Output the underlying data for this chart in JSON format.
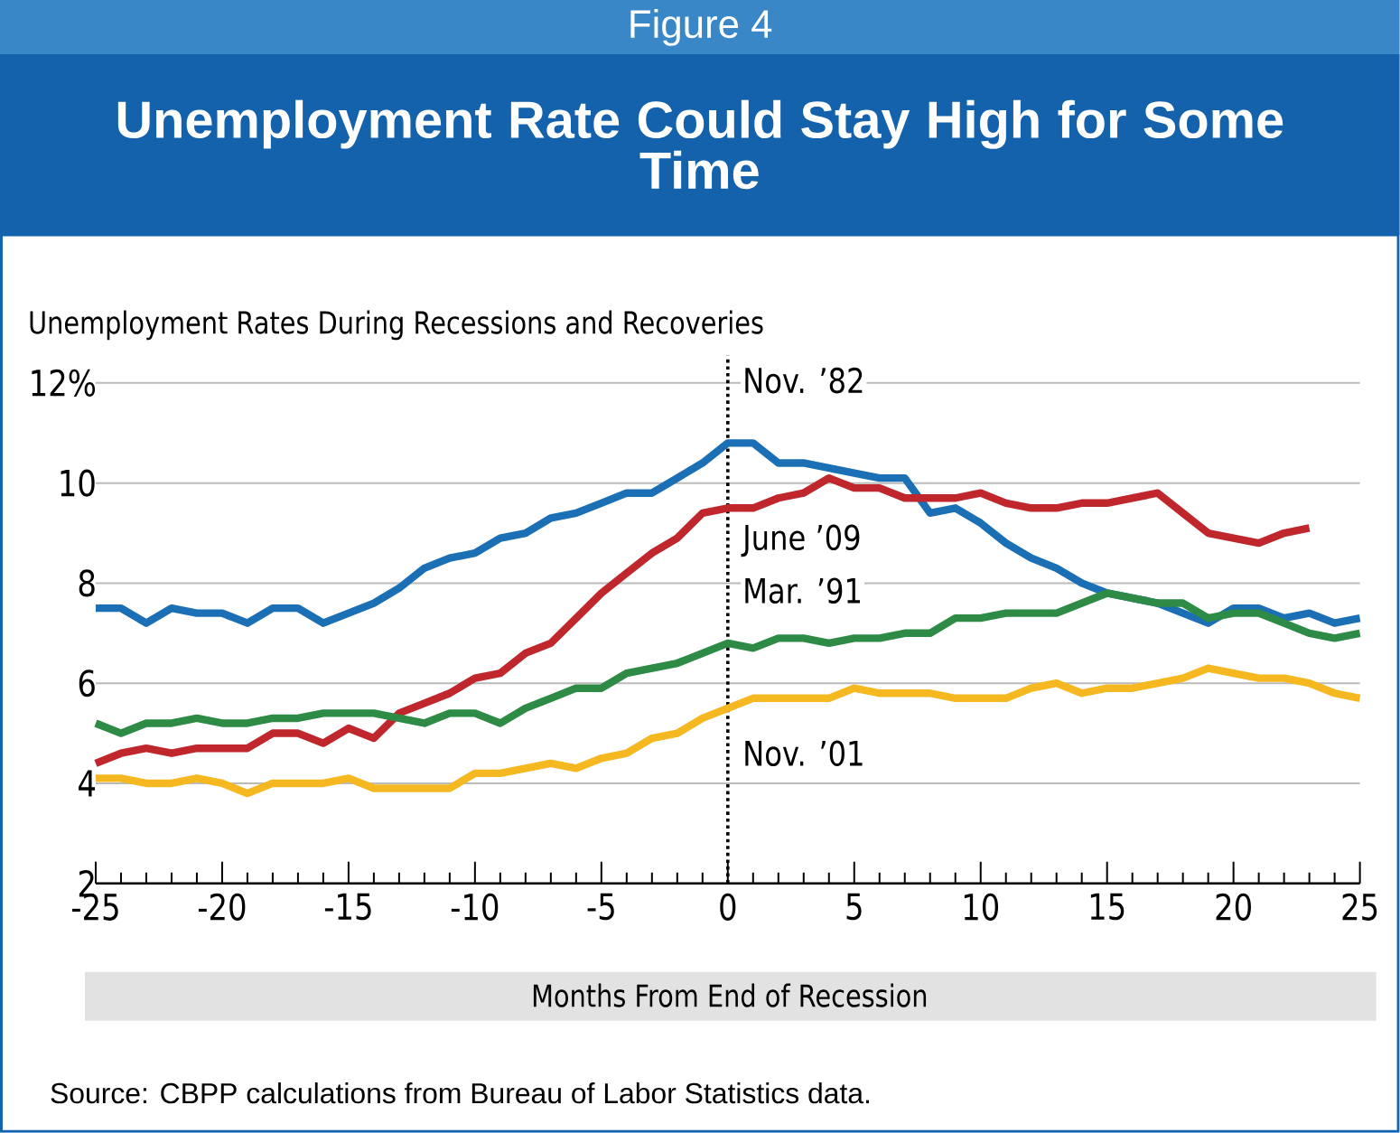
{
  "chart_data": {
    "type": "line",
    "title": "Unemployment Rate Could Stay High for Some Time",
    "subtitle": "Unemployment Rates During Recessions and Recoveries",
    "xlabel": "Months From End of Recession",
    "annotations": [
      "Figure 4",
      "Source: CBPP calculations from Bureau of Labor Statistics data."
    ],
    "x": [
      -25,
      -24,
      -23,
      -22,
      -21,
      -20,
      -19,
      -18,
      -17,
      -16,
      -15,
      -14,
      -13,
      -12,
      -11,
      -10,
      -9,
      -8,
      -7,
      -6,
      -5,
      -4,
      -3,
      -2,
      -1,
      0,
      1,
      2,
      3,
      4,
      5,
      6,
      7,
      8,
      9,
      10,
      11,
      12,
      13,
      14,
      15,
      16,
      17,
      18,
      19,
      20,
      21,
      22,
      23,
      24,
      25
    ],
    "series": [
      {
        "name": "Nov. ’82",
        "color": "#1a6fb5",
        "values": [
          7.5,
          7.5,
          7.2,
          7.5,
          7.4,
          7.4,
          7.2,
          7.5,
          7.5,
          7.2,
          7.4,
          7.6,
          7.9,
          8.3,
          8.5,
          8.6,
          8.9,
          9.0,
          9.3,
          9.4,
          9.6,
          9.8,
          9.8,
          10.1,
          10.4,
          10.8,
          10.8,
          10.4,
          10.4,
          10.3,
          10.2,
          10.1,
          10.1,
          9.4,
          9.5,
          9.2,
          8.8,
          8.5,
          8.3,
          8.0,
          7.8,
          7.7,
          7.6,
          7.4,
          7.2,
          7.5,
          7.5,
          7.3,
          7.4,
          7.2,
          7.3
        ]
      },
      {
        "name": "June ’09",
        "color": "#c0272d",
        "values": [
          4.4,
          4.6,
          4.7,
          4.6,
          4.7,
          4.7,
          4.7,
          5.0,
          5.0,
          4.8,
          5.1,
          4.9,
          5.4,
          5.6,
          5.8,
          6.1,
          6.2,
          6.6,
          6.8,
          7.3,
          7.8,
          8.2,
          8.6,
          8.9,
          9.4,
          9.5,
          9.5,
          9.7,
          9.8,
          10.1,
          9.9,
          9.9,
          9.7,
          9.7,
          9.7,
          9.8,
          9.6,
          9.5,
          9.5,
          9.6,
          9.6,
          9.7,
          9.8,
          9.4,
          9.0,
          8.9,
          8.8,
          9.0,
          9.1,
          null,
          null
        ]
      },
      {
        "name": "Mar. ’91",
        "color": "#2e8b45",
        "values": [
          5.2,
          5.0,
          5.2,
          5.2,
          5.3,
          5.2,
          5.2,
          5.3,
          5.3,
          5.4,
          5.4,
          5.4,
          5.3,
          5.2,
          5.4,
          5.4,
          5.2,
          5.5,
          5.7,
          5.9,
          5.9,
          6.2,
          6.3,
          6.4,
          6.6,
          6.8,
          6.7,
          6.9,
          6.9,
          6.8,
          6.9,
          6.9,
          7.0,
          7.0,
          7.3,
          7.3,
          7.4,
          7.4,
          7.4,
          7.6,
          7.8,
          7.7,
          7.6,
          7.6,
          7.3,
          7.4,
          7.4,
          7.2,
          7.0,
          6.9,
          7.0
        ]
      },
      {
        "name": "Nov. ’01",
        "color": "#f5b820",
        "values": [
          4.1,
          4.1,
          4.0,
          4.0,
          4.1,
          4.0,
          3.8,
          4.0,
          4.0,
          4.0,
          4.1,
          3.9,
          3.9,
          3.9,
          3.9,
          4.2,
          4.2,
          4.3,
          4.4,
          4.3,
          4.5,
          4.6,
          4.9,
          5.0,
          5.3,
          5.5,
          5.7,
          5.7,
          5.7,
          5.7,
          5.9,
          5.8,
          5.8,
          5.8,
          5.7,
          5.7,
          5.7,
          5.9,
          6.0,
          5.8,
          5.9,
          5.9,
          6.0,
          6.1,
          6.3,
          6.2,
          6.1,
          6.1,
          6.0,
          5.8,
          5.7
        ]
      }
    ],
    "xlim": [
      -25,
      25
    ],
    "ylim": [
      2,
      12
    ],
    "xticks": [
      -25,
      -20,
      -15,
      -10,
      -5,
      0,
      5,
      10,
      15,
      20,
      25
    ],
    "yticks": [
      2,
      4,
      6,
      8,
      10,
      {
        "value": 12,
        "label": "12%"
      }
    ],
    "grid": "y",
    "legend": false,
    "line_style": "solid",
    "marker": "none",
    "ref_lines": [
      {
        "axis": "x",
        "value": 0,
        "color": "#000000",
        "line_style": "dotted"
      }
    ]
  }
}
